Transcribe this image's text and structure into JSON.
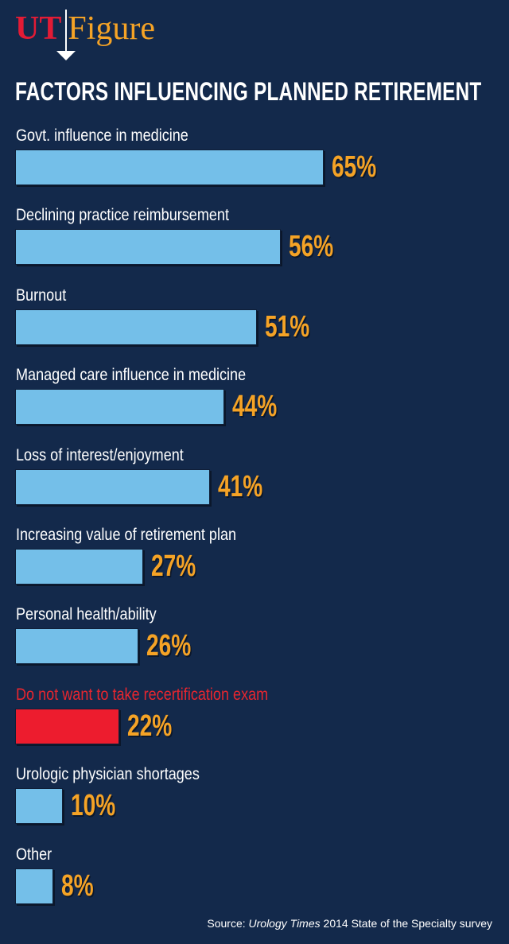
{
  "brand": {
    "ut": "UT",
    "figure": "Figure"
  },
  "chart_data": {
    "type": "bar",
    "orientation": "horizontal",
    "title": "FACTORS INFLUENCING PLANNED RETIREMENT",
    "categories": [
      "Govt. influence in medicine",
      "Declining practice reimbursement",
      "Burnout",
      "Managed care influence in medicine",
      "Loss of interest/enjoyment",
      "Increasing value of retirement plan",
      "Personal health/ability",
      "Do not want to take recertification exam",
      "Urologic physician shortages",
      "Other"
    ],
    "values": [
      65,
      56,
      51,
      44,
      41,
      27,
      26,
      22,
      10,
      8
    ],
    "value_labels": [
      "65%",
      "56%",
      "51%",
      "44%",
      "41%",
      "27%",
      "26%",
      "22%",
      "10%",
      "8%"
    ],
    "highlight_index": 7,
    "unit": "%",
    "xlim": [
      0,
      100
    ],
    "colors": {
      "bar": "#74bfe9",
      "highlight": "#ed1c2e",
      "value_text": "#f5a326",
      "background": "#13294b"
    }
  },
  "source": {
    "prefix": "Source: ",
    "publication": "Urology Times",
    "suffix": " 2014 State of the Specialty survey"
  }
}
